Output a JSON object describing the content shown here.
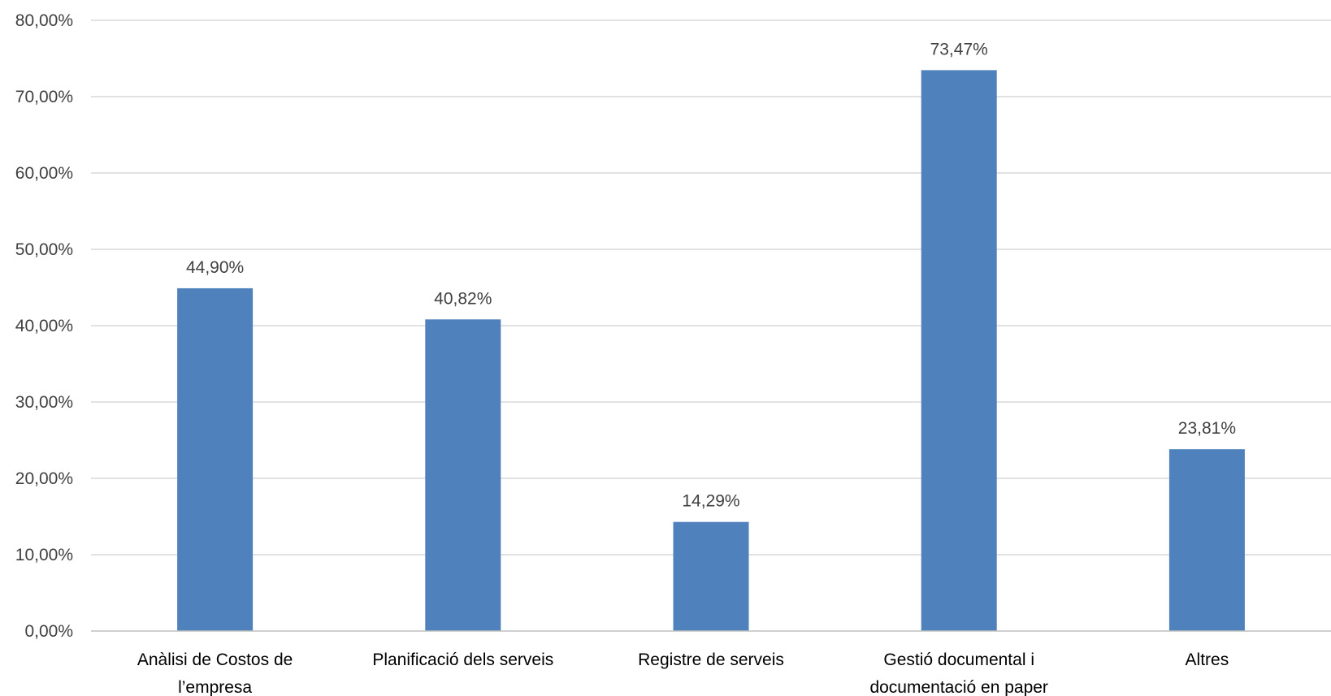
{
  "chart_data": {
    "type": "bar",
    "title": "",
    "xlabel": "",
    "ylabel": "",
    "categories": [
      [
        "Anàlisi de Costos de",
        "l’empresa"
      ],
      [
        "Planificació dels serveis"
      ],
      [
        "Registre de serveis"
      ],
      [
        "Gestió documental i",
        "documentació en paper"
      ],
      [
        "Altres"
      ]
    ],
    "values": [
      44.9,
      40.82,
      14.29,
      73.47,
      23.81
    ],
    "value_labels": [
      "44,90%",
      "40,82%",
      "14,29%",
      "73,47%",
      "23,81%"
    ],
    "ylim": [
      0,
      80
    ],
    "yticks": [
      0,
      10,
      20,
      30,
      40,
      50,
      60,
      70,
      80
    ],
    "ytick_labels": [
      "0,00%",
      "10,00%",
      "20,00%",
      "30,00%",
      "40,00%",
      "50,00%",
      "60,00%",
      "70,00%",
      "80,00%"
    ],
    "grid": true,
    "legend": "none",
    "colors": {
      "bar": "#4f81bd",
      "grid": "#d9d9d9",
      "axis": "#bfbfbf"
    }
  }
}
